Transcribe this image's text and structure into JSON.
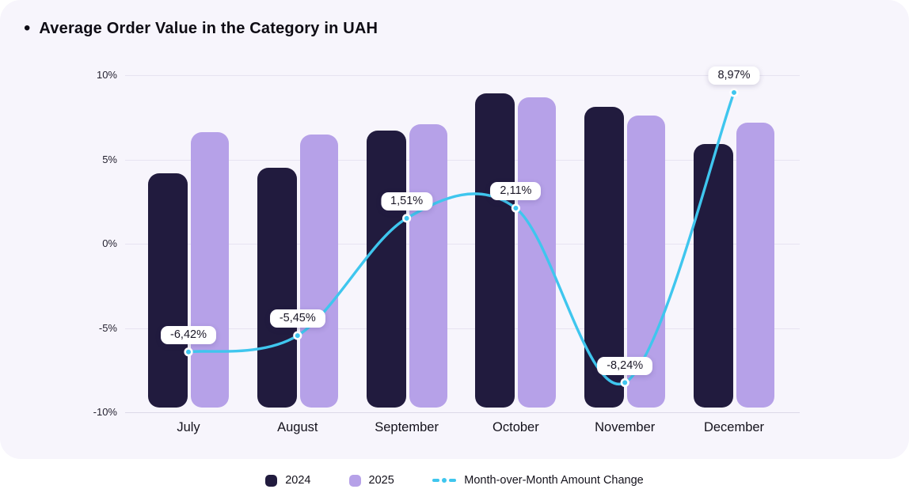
{
  "header": {
    "bullet": "•",
    "title": "Average Order Value in the Category in UAH"
  },
  "chart_data": {
    "type": "bar",
    "subtype": "grouped bars with overlaid line",
    "title": "Average Order Value in the Category in UAH",
    "categories": [
      "July",
      "August",
      "September",
      "October",
      "November",
      "December"
    ],
    "series": [
      {
        "name": "2024",
        "type": "bar",
        "color": "#211b3e",
        "values": [
          4.2,
          4.5,
          6.7,
          8.9,
          8.1,
          5.9
        ]
      },
      {
        "name": "2025",
        "type": "bar",
        "color": "#b6a1e8",
        "values": [
          6.6,
          6.5,
          7.1,
          8.7,
          7.6,
          7.2
        ]
      },
      {
        "name": "Month-over-Month Amount Change",
        "type": "line",
        "color": "#3fc6ee",
        "values": [
          -6.42,
          -5.45,
          1.51,
          2.11,
          -8.24,
          8.97
        ],
        "point_labels": [
          "-6,42%",
          "-5,45%",
          "1,51%",
          "2,11%",
          "-8,24%",
          "8,97%"
        ]
      }
    ],
    "y_axis": {
      "ticks": [
        {
          "label": "10%",
          "value": 10
        },
        {
          "label": "5%",
          "value": 5
        },
        {
          "label": "0%",
          "value": 0
        },
        {
          "label": "-5%",
          "value": -5
        },
        {
          "label": "-10%",
          "value": -10
        }
      ],
      "range": [
        -10,
        10
      ]
    },
    "grid": true,
    "legend_position": "bottom"
  },
  "legend": {
    "items": [
      {
        "label": "2024",
        "swatch": "square",
        "color": "#211b3e"
      },
      {
        "label": "2025",
        "swatch": "square",
        "color": "#b6a1e8"
      },
      {
        "label": "Month-over-Month Amount Change",
        "swatch": "dash-dot-line",
        "color": "#3fc6ee"
      }
    ]
  },
  "colors": {
    "card_bg": "#f7f5fc",
    "page_bg": "#ffffff",
    "grid": "#e7e3f1",
    "text": "#14121c",
    "pill_bg": "#ffffff",
    "line": "#3fc6ee",
    "bar_2024": "#211b3e",
    "bar_2025": "#b6a1e8"
  }
}
